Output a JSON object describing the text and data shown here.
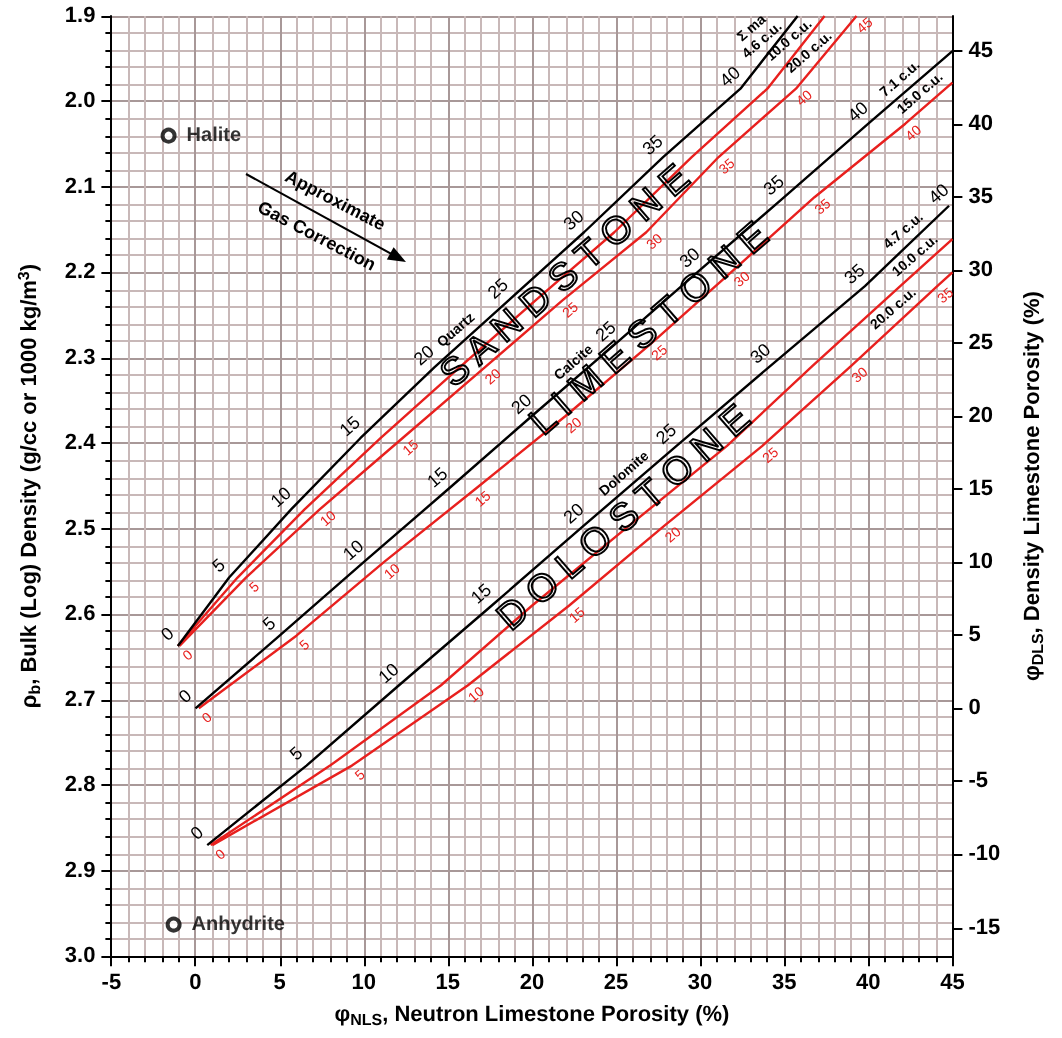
{
  "chart_data": {
    "type": "line",
    "xlabel": "φ$_{NLS}$, Neutron Limestone Porosity (%)",
    "ylabel": "ρ$_{b}$, Bulk (Log) Density (g/cc or 1000 kg/m$^{3}$)",
    "y2label": "φ$_{DLS}$, Density Limestone Porosity (%)",
    "xlim": [
      -5,
      45
    ],
    "xticks": [
      -5,
      0,
      5,
      10,
      15,
      20,
      25,
      30,
      35,
      40,
      45
    ],
    "ylim": [
      3.0,
      1.9
    ],
    "yticks": [
      1.9,
      {
        "value": 2,
        "label": "2.0"
      },
      2.1,
      2.2,
      2.3,
      2.4,
      2.5,
      2.6,
      2.7,
      2.8,
      2.9,
      {
        "value": 3,
        "label": "3.0"
      }
    ],
    "y2lim": [
      -16.96,
      47.37
    ],
    "y2ticks": [
      -15,
      -10,
      -5,
      0,
      5,
      10,
      15,
      20,
      25,
      30,
      35,
      40,
      45
    ],
    "grid": true,
    "marker": "none",
    "line_style": "solid",
    "series": [
      {
        "color": "#000000",
        "x": [
          -1.05,
          2.0,
          5.7,
          9.8,
          14.2,
          18.6,
          23.1,
          27.8,
          32.4,
          35.8
        ],
        "values": [
          2.637,
          2.557,
          2.477,
          2.394,
          2.311,
          2.233,
          2.153,
          2.065,
          1.985,
          1.9
        ]
      },
      {
        "color": "#e8201e",
        "x": [
          -1.05,
          2.5,
          6.5,
          11.0,
          15.7,
          20.2,
          24.9,
          29.5,
          34.0,
          37.4
        ],
        "values": [
          2.637,
          2.557,
          2.477,
          2.394,
          2.311,
          2.233,
          2.153,
          2.065,
          1.985,
          1.9
        ]
      },
      {
        "color": "#e8201e",
        "x": [
          -0.95,
          3.0,
          7.4,
          12.3,
          17.2,
          21.8,
          26.8,
          31.1,
          35.7,
          39.3
        ],
        "values": [
          2.637,
          2.557,
          2.477,
          2.394,
          2.311,
          2.233,
          2.153,
          2.065,
          1.985,
          1.9
        ]
      },
      {
        "color": "#000000",
        "x": [
          0,
          5,
          10,
          15,
          20,
          25,
          30,
          35,
          40,
          45
        ],
        "values": [
          2.71,
          2.625,
          2.539,
          2.454,
          2.368,
          2.283,
          2.197,
          2.112,
          2.026,
          1.941
        ]
      },
      {
        "color": "#e8201e",
        "x": [
          0.2,
          6.0,
          11.2,
          16.6,
          22.0,
          27.1,
          32.0,
          36.8,
          42.2,
          45
        ],
        "values": [
          2.71,
          2.625,
          2.539,
          2.454,
          2.368,
          2.283,
          2.197,
          2.112,
          2.026,
          1.978
        ]
      },
      {
        "color": "#000000",
        "x": [
          0.7,
          6.6,
          12.1,
          17.6,
          23.1,
          28.6,
          34.2,
          39.8,
          44.8
        ],
        "values": [
          2.87,
          2.777,
          2.683,
          2.59,
          2.496,
          2.403,
          2.309,
          2.216,
          2.122
        ]
      },
      {
        "color": "#e8201e",
        "x": [
          0.9,
          8.0,
          14.6,
          20.0,
          25.8,
          31.6,
          36.7,
          41.9,
          45
        ],
        "values": [
          2.87,
          2.777,
          2.683,
          2.59,
          2.496,
          2.403,
          2.309,
          2.216,
          2.161
        ]
      },
      {
        "color": "#e8201e",
        "x": [
          1.0,
          9.3,
          16.2,
          22.2,
          27.9,
          33.7,
          39.0,
          44.1,
          45
        ],
        "values": [
          2.87,
          2.777,
          2.683,
          2.59,
          2.496,
          2.403,
          2.309,
          2.216,
          2.2
        ]
      },
      {
        "name": "Halite",
        "type": "scatter",
        "marker": "circle",
        "color": "#000000",
        "x": [
          -1.6
        ],
        "values": [
          2.04
        ]
      },
      {
        "name": "Anhydrite",
        "type": "scatter",
        "marker": "circle",
        "color": "#000000",
        "x": [
          -1.3
        ],
        "values": [
          2.963
        ]
      }
    ],
    "annotations": [
      {
        "text": "S A N D S T O N E",
        "x": 22.0,
        "y": 2.205
      },
      {
        "text": "L I M E S T O N E",
        "x": 27.0,
        "y": 2.267
      },
      {
        "text": "D O L O S T O N E",
        "x": 25.5,
        "y": 2.488
      },
      {
        "text": "Quartz",
        "x": 16.0,
        "y": 2.279
      },
      {
        "text": "Calcite",
        "x": 23.0,
        "y": 2.317
      },
      {
        "text": "Dolomite",
        "x": 26.0,
        "y": 2.447
      },
      {
        "text": "Σ ma\n4.6 c.u.",
        "x": 34.2,
        "y": 1.94
      },
      {
        "text": "10.0 c.u.",
        "x": 35.8,
        "y": 1.94
      },
      {
        "text": "20.0 c.u.",
        "x": 37.0,
        "y": 1.954
      },
      {
        "text": "7.1 c.u.",
        "x": 42.4,
        "y": 1.985
      },
      {
        "text": "15.0 c.u.",
        "x": 43.6,
        "y": 2.002
      },
      {
        "text": "4.7 c.u.",
        "x": 42.6,
        "y": 2.163
      },
      {
        "text": "10.0 c.u.",
        "x": 43.3,
        "y": 2.192
      },
      {
        "text": "20.0 c.u.",
        "x": 42.0,
        "y": 2.254
      },
      {
        "text": "0",
        "x": -1.05,
        "y": 2.637
      },
      {
        "text": "5",
        "x": 2.0,
        "y": 2.557
      },
      {
        "text": "10",
        "x": 5.7,
        "y": 2.477
      },
      {
        "text": "15",
        "x": 9.8,
        "y": 2.394
      },
      {
        "text": "20",
        "x": 14.2,
        "y": 2.311
      },
      {
        "text": "25",
        "x": 18.6,
        "y": 2.233
      },
      {
        "text": "30",
        "x": 23.1,
        "y": 2.153
      },
      {
        "text": "35",
        "x": 27.8,
        "y": 2.065
      },
      {
        "text": "40",
        "x": 32.4,
        "y": 1.985
      },
      {
        "text": "0",
        "x": -0.95,
        "y": 2.637
      },
      {
        "text": "5",
        "x": 3.0,
        "y": 2.557
      },
      {
        "text": "10",
        "x": 7.4,
        "y": 2.477
      },
      {
        "text": "15",
        "x": 12.3,
        "y": 2.394
      },
      {
        "text": "20",
        "x": 17.2,
        "y": 2.311
      },
      {
        "text": "25",
        "x": 21.8,
        "y": 2.233
      },
      {
        "text": "30",
        "x": 26.8,
        "y": 2.153
      },
      {
        "text": "35",
        "x": 31.1,
        "y": 2.065
      },
      {
        "text": "40",
        "x": 35.7,
        "y": 1.985
      },
      {
        "text": "45",
        "x": 39.3,
        "y": 1.9
      },
      {
        "text": "0",
        "x": 0,
        "y": 2.71
      },
      {
        "text": "5",
        "x": 5,
        "y": 2.625
      },
      {
        "text": "10",
        "x": 10,
        "y": 2.539
      },
      {
        "text": "15",
        "x": 15,
        "y": 2.454
      },
      {
        "text": "20",
        "x": 20,
        "y": 2.368
      },
      {
        "text": "25",
        "x": 25,
        "y": 2.283
      },
      {
        "text": "30",
        "x": 30,
        "y": 2.197
      },
      {
        "text": "35",
        "x": 35,
        "y": 2.112
      },
      {
        "text": "40",
        "x": 40,
        "y": 2.026
      },
      {
        "text": "0",
        "x": 0.2,
        "y": 2.71
      },
      {
        "text": "5",
        "x": 6.0,
        "y": 2.625
      },
      {
        "text": "10",
        "x": 11.2,
        "y": 2.539
      },
      {
        "text": "15",
        "x": 16.6,
        "y": 2.454
      },
      {
        "text": "20",
        "x": 22.0,
        "y": 2.368
      },
      {
        "text": "25",
        "x": 27.1,
        "y": 2.283
      },
      {
        "text": "30",
        "x": 32.0,
        "y": 2.197
      },
      {
        "text": "35",
        "x": 36.8,
        "y": 2.112
      },
      {
        "text": "40",
        "x": 42.2,
        "y": 2.026
      },
      {
        "text": "0",
        "x": 0.7,
        "y": 2.87
      },
      {
        "text": "5",
        "x": 6.6,
        "y": 2.777
      },
      {
        "text": "10",
        "x": 12.1,
        "y": 2.683
      },
      {
        "text": "15",
        "x": 17.6,
        "y": 2.59
      },
      {
        "text": "20",
        "x": 23.1,
        "y": 2.496
      },
      {
        "text": "25",
        "x": 28.6,
        "y": 2.403
      },
      {
        "text": "30",
        "x": 34.2,
        "y": 2.309
      },
      {
        "text": "35",
        "x": 39.8,
        "y": 2.216
      },
      {
        "text": "40",
        "x": 44.8,
        "y": 2.122
      },
      {
        "text": "0",
        "x": 1.0,
        "y": 2.87
      },
      {
        "text": "5",
        "x": 9.3,
        "y": 2.777
      },
      {
        "text": "10",
        "x": 16.2,
        "y": 2.683
      },
      {
        "text": "15",
        "x": 22.2,
        "y": 2.59
      },
      {
        "text": "20",
        "x": 27.9,
        "y": 2.496
      },
      {
        "text": "25",
        "x": 33.7,
        "y": 2.403
      },
      {
        "text": "30",
        "x": 39.0,
        "y": 2.309
      },
      {
        "text": "35",
        "x": 44.1,
        "y": 2.216
      },
      "Approximate",
      "Gas Correction"
    ]
  }
}
